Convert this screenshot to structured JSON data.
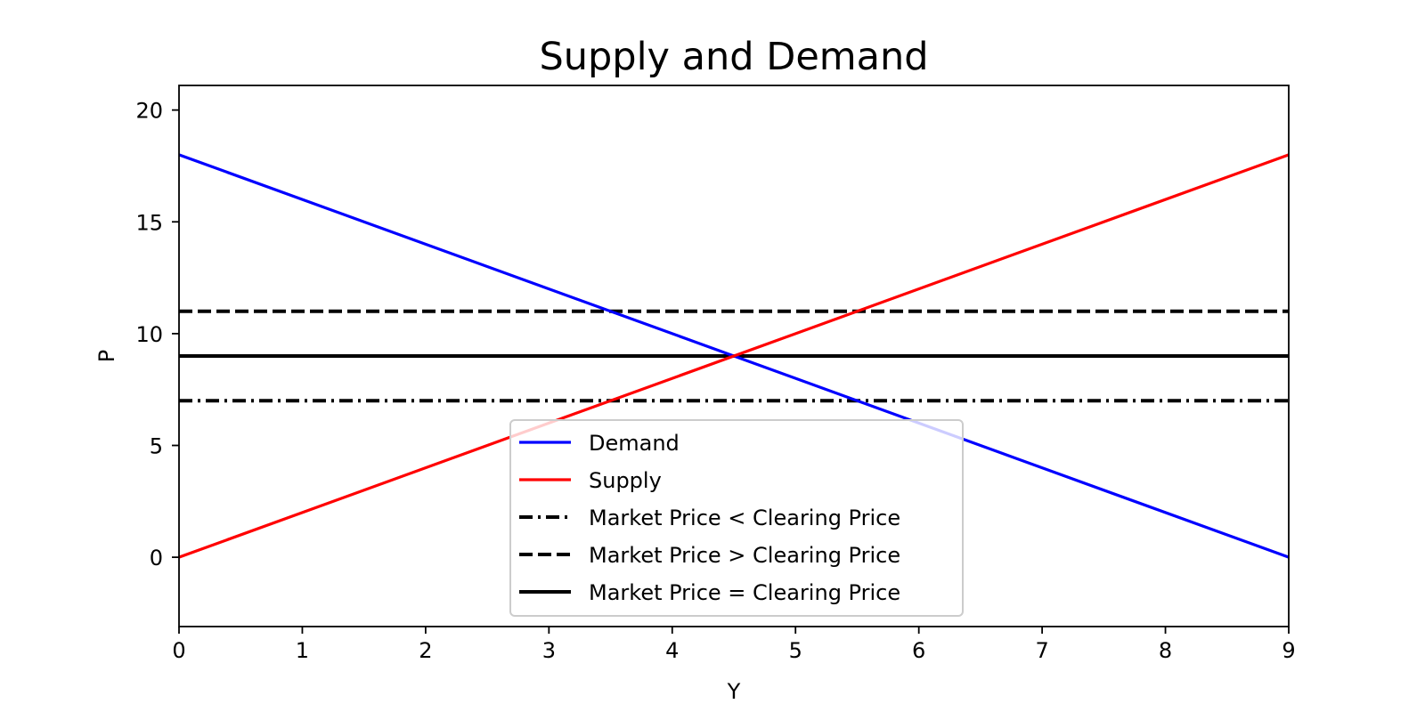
{
  "chart_data": {
    "type": "line",
    "title": "Supply and Demand",
    "xlabel": "Y",
    "ylabel": "P",
    "xlim": [
      0,
      9
    ],
    "ylim": [
      -3.1,
      21.1
    ],
    "xticks": [
      0,
      1,
      2,
      3,
      4,
      5,
      6,
      7,
      8,
      9
    ],
    "yticks": [
      0,
      5,
      10,
      15,
      20
    ],
    "grid": false,
    "legend_position": "lower center",
    "series": [
      {
        "name": "Demand",
        "color": "#0000ff",
        "style": "solid",
        "x": [
          0,
          9
        ],
        "y": [
          18,
          0
        ]
      },
      {
        "name": "Supply",
        "color": "#ff0000",
        "style": "solid",
        "x": [
          0,
          9
        ],
        "y": [
          0,
          18
        ]
      }
    ],
    "hlines": [
      {
        "name": "Market Price < Clearing Price",
        "y": 7,
        "color": "#000000",
        "style": "dashdot"
      },
      {
        "name": "Market Price > Clearing Price",
        "y": 11,
        "color": "#000000",
        "style": "dashed"
      },
      {
        "name": "Market Price = Clearing Price",
        "y": 9,
        "color": "#000000",
        "style": "solid"
      }
    ]
  }
}
